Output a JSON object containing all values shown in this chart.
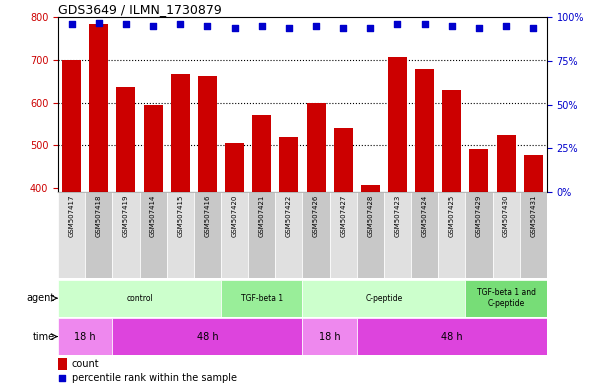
{
  "title": "GDS3649 / ILMN_1730879",
  "samples": [
    "GSM507417",
    "GSM507418",
    "GSM507419",
    "GSM507414",
    "GSM507415",
    "GSM507416",
    "GSM507420",
    "GSM507421",
    "GSM507422",
    "GSM507426",
    "GSM507427",
    "GSM507428",
    "GSM507423",
    "GSM507424",
    "GSM507425",
    "GSM507429",
    "GSM507430",
    "GSM507431"
  ],
  "counts": [
    700,
    785,
    636,
    595,
    666,
    662,
    504,
    570,
    519,
    600,
    540,
    407,
    707,
    678,
    629,
    490,
    524,
    477
  ],
  "percentile_ranks": [
    96,
    97,
    96,
    95,
    96,
    95,
    94,
    95,
    94,
    95,
    94,
    94,
    96,
    96,
    95,
    94,
    95,
    94
  ],
  "ylim_left": [
    390,
    800
  ],
  "ylim_right": [
    0,
    100
  ],
  "yticks_left": [
    400,
    500,
    600,
    700,
    800
  ],
  "yticks_right": [
    0,
    25,
    50,
    75,
    100
  ],
  "bar_color": "#cc0000",
  "dot_color": "#0000cc",
  "agent_groups": [
    {
      "label": "control",
      "start": 0,
      "end": 6,
      "color": "#ccffcc"
    },
    {
      "label": "TGF-beta 1",
      "start": 6,
      "end": 9,
      "color": "#99ee99"
    },
    {
      "label": "C-peptide",
      "start": 9,
      "end": 15,
      "color": "#ccffcc"
    },
    {
      "label": "TGF-beta 1 and\nC-peptide",
      "start": 15,
      "end": 18,
      "color": "#77dd77"
    }
  ],
  "time_groups": [
    {
      "label": "18 h",
      "start": 0,
      "end": 2,
      "color": "#ee88ee"
    },
    {
      "label": "48 h",
      "start": 2,
      "end": 9,
      "color": "#dd44dd"
    },
    {
      "label": "18 h",
      "start": 9,
      "end": 11,
      "color": "#ee88ee"
    },
    {
      "label": "48 h",
      "start": 11,
      "end": 18,
      "color": "#dd44dd"
    }
  ],
  "legend_count_color": "#cc0000",
  "legend_dot_color": "#0000cc",
  "tick_color_left": "#cc0000",
  "tick_color_right": "#0000cc",
  "grid_dotted_ticks": [
    500,
    600,
    700
  ],
  "label_fontsize": 7,
  "sample_fontsize": 5.5
}
